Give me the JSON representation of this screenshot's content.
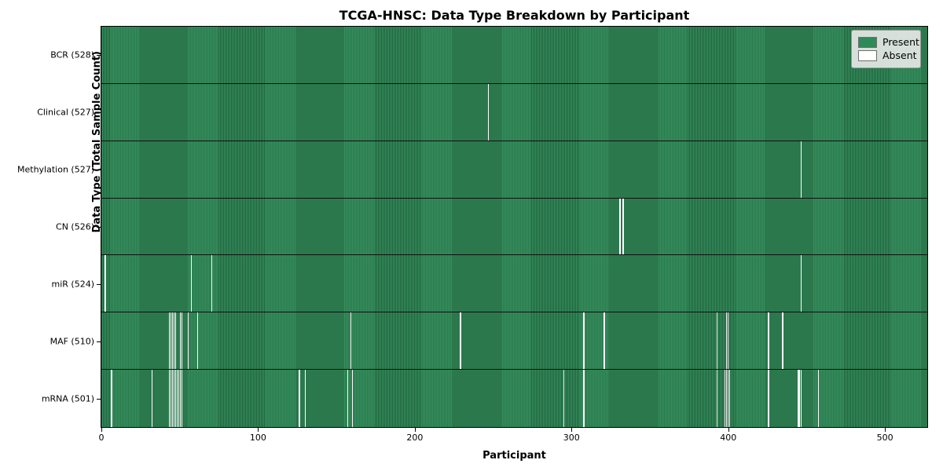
{
  "figure": {
    "title": "TCGA-HNSC: Data Type Breakdown by Participant",
    "xlabel": "Participant",
    "ylabel": "Data Type (Total Sample Count)"
  },
  "legend": {
    "items": [
      {
        "label": "Present",
        "color": "#2e8b57"
      },
      {
        "label": "Absent",
        "color": "#ffffff"
      }
    ]
  },
  "colors": {
    "present": "#2e8b57",
    "absent": "#ffffff",
    "bar_edge": "#1c5634",
    "row_separator": "#101010",
    "legend_background": "#e5e8e5"
  },
  "chart_data": {
    "type": "heatmap",
    "title": "TCGA-HNSC: Data Type Breakdown by Participant",
    "xlabel": "Participant",
    "ylabel": "Data Type (Total Sample Count)",
    "legend_entries": [
      "Present",
      "Absent"
    ],
    "legend_position": "upper right",
    "present_color": "#2e8b57",
    "absent_color": "#ffffff",
    "total_participants": 528,
    "x_range": [
      0,
      528
    ],
    "x_ticks": [
      0,
      100,
      200,
      300,
      400,
      500
    ],
    "rows": [
      {
        "data_type": "BCR",
        "label": "BCR (528)",
        "present_count": 528,
        "absent_count": 0,
        "absent_participants": []
      },
      {
        "data_type": "Clinical",
        "label": "Clinical (527)",
        "present_count": 527,
        "absent_count": 1,
        "absent_participants": [
          247
        ]
      },
      {
        "data_type": "Methylation",
        "label": "Methylation (527)",
        "present_count": 527,
        "absent_count": 1,
        "absent_participants": [
          447
        ]
      },
      {
        "data_type": "CN",
        "label": "CN (526)",
        "present_count": 526,
        "absent_count": 2,
        "absent_participants": [
          331,
          333
        ]
      },
      {
        "data_type": "miR",
        "label": "miR (524)",
        "present_count": 524,
        "absent_count": 4,
        "absent_participants": [
          2,
          57,
          70,
          447
        ]
      },
      {
        "data_type": "MAF",
        "label": "MAF (510)",
        "present_count": 510,
        "absent_count": 18,
        "absent_participants": [
          43,
          44,
          45,
          46,
          47,
          50,
          51,
          55,
          61,
          159,
          229,
          308,
          321,
          393,
          399,
          400,
          426,
          435
        ]
      },
      {
        "data_type": "mRNA",
        "label": "mRNA (501)",
        "present_count": 501,
        "absent_count": 27,
        "absent_participants": [
          6,
          32,
          43,
          44,
          45,
          46,
          47,
          48,
          49,
          50,
          51,
          126,
          130,
          157,
          160,
          295,
          308,
          393,
          398,
          399,
          400,
          401,
          426,
          445,
          446,
          447,
          458
        ]
      }
    ]
  }
}
